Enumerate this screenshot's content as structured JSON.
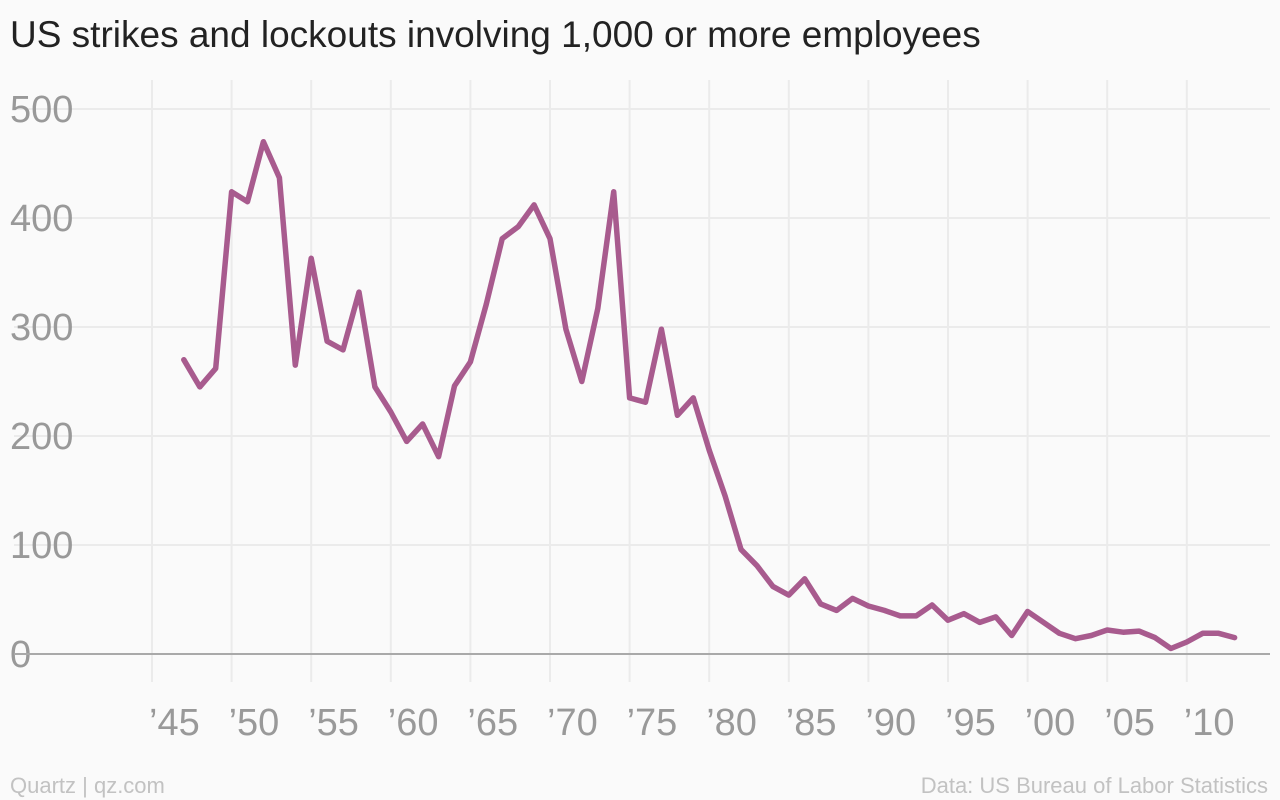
{
  "footer": {
    "source_left": "Quartz | qz.com",
    "source_right": "Data: US Bureau of Labor Statistics"
  },
  "chart_data": {
    "type": "line",
    "title": "US strikes and lockouts involving 1,000 or more employees",
    "xlabel": "",
    "ylabel": "",
    "ylim": [
      0,
      500
    ],
    "xlim": [
      1942,
      2015
    ],
    "y_ticks": [
      0,
      100,
      200,
      300,
      400,
      500
    ],
    "y_tick_labels": [
      "0",
      "100",
      "200",
      "300",
      "400",
      "500"
    ],
    "x_ticks": [
      1945,
      1950,
      1955,
      1960,
      1965,
      1970,
      1975,
      1980,
      1985,
      1990,
      1995,
      2000,
      2005,
      2010
    ],
    "x_tick_labels": [
      "’45",
      "’50",
      "’55",
      "’60",
      "’65",
      "’70",
      "’75",
      "’80",
      "’85",
      "’90",
      "’95",
      "’00",
      "’05",
      "’10"
    ],
    "grid": true,
    "line_color": "#a85b8e",
    "series": [
      {
        "x": [
          1947,
          1948,
          1949,
          1950,
          1951,
          1952,
          1953,
          1954,
          1955,
          1956,
          1957,
          1958,
          1959,
          1960,
          1961,
          1962,
          1963,
          1964,
          1965,
          1966,
          1967,
          1968,
          1969,
          1970,
          1971,
          1972,
          1973,
          1974,
          1975,
          1976,
          1977,
          1978,
          1979,
          1980,
          1981,
          1982,
          1983,
          1984,
          1985,
          1986,
          1987,
          1988,
          1989,
          1990,
          1991,
          1992,
          1993,
          1994,
          1995,
          1996,
          1997,
          1998,
          1999,
          2000,
          2001,
          2002,
          2003,
          2004,
          2005,
          2006,
          2007,
          2008,
          2009,
          2010,
          2011,
          2012,
          2013
        ],
        "values": [
          270,
          245,
          262,
          424,
          415,
          470,
          437,
          265,
          363,
          287,
          279,
          332,
          245,
          222,
          195,
          211,
          181,
          246,
          268,
          321,
          381,
          392,
          412,
          381,
          298,
          250,
          317,
          424,
          235,
          231,
          298,
          219,
          235,
          187,
          145,
          96,
          81,
          62,
          54,
          69,
          46,
          40,
          51,
          44,
          40,
          35,
          35,
          45,
          31,
          37,
          29,
          34,
          17,
          39,
          29,
          19,
          14,
          17,
          22,
          20,
          21,
          15,
          5,
          11,
          19,
          19,
          15
        ]
      }
    ]
  }
}
